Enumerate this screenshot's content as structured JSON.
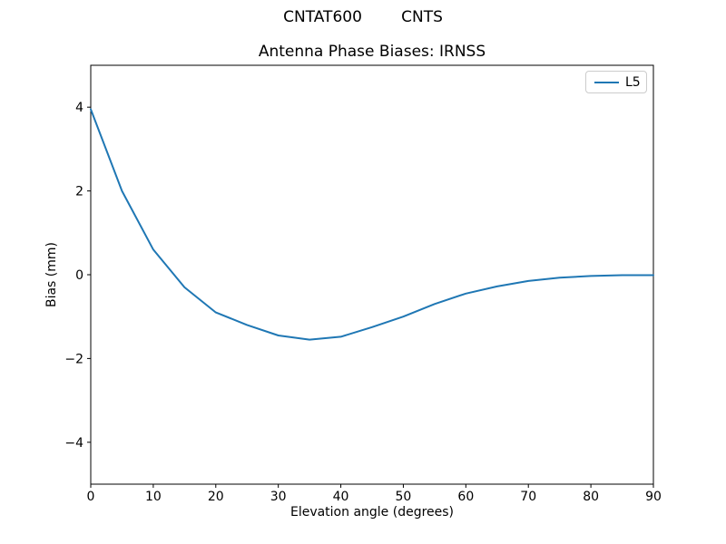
{
  "figure": {
    "suptitle": "CNTAT600        CNTS",
    "background": "#ffffff"
  },
  "chart_data": {
    "type": "line",
    "title": "Antenna Phase Biases: IRNSS",
    "xlabel": "Elevation angle (degrees)",
    "ylabel": "Bias (mm)",
    "xlim": [
      0,
      90
    ],
    "ylim": [
      -5,
      5
    ],
    "x_ticks": [
      0,
      10,
      20,
      30,
      40,
      50,
      60,
      70,
      80,
      90
    ],
    "y_ticks": [
      -4,
      -2,
      0,
      2,
      4
    ],
    "grid": false,
    "legend": {
      "position": "upper right",
      "entries": [
        "L5"
      ]
    },
    "series": [
      {
        "name": "L5",
        "color": "#1f77b4",
        "x": [
          0,
          5,
          10,
          15,
          20,
          25,
          30,
          35,
          40,
          45,
          50,
          55,
          60,
          65,
          70,
          75,
          80,
          85,
          90
        ],
        "values": [
          3.95,
          2.0,
          0.6,
          -0.3,
          -0.9,
          -1.2,
          -1.45,
          -1.55,
          -1.48,
          -1.25,
          -1.0,
          -0.7,
          -0.45,
          -0.28,
          -0.15,
          -0.07,
          -0.03,
          -0.01,
          -0.01
        ]
      }
    ]
  }
}
